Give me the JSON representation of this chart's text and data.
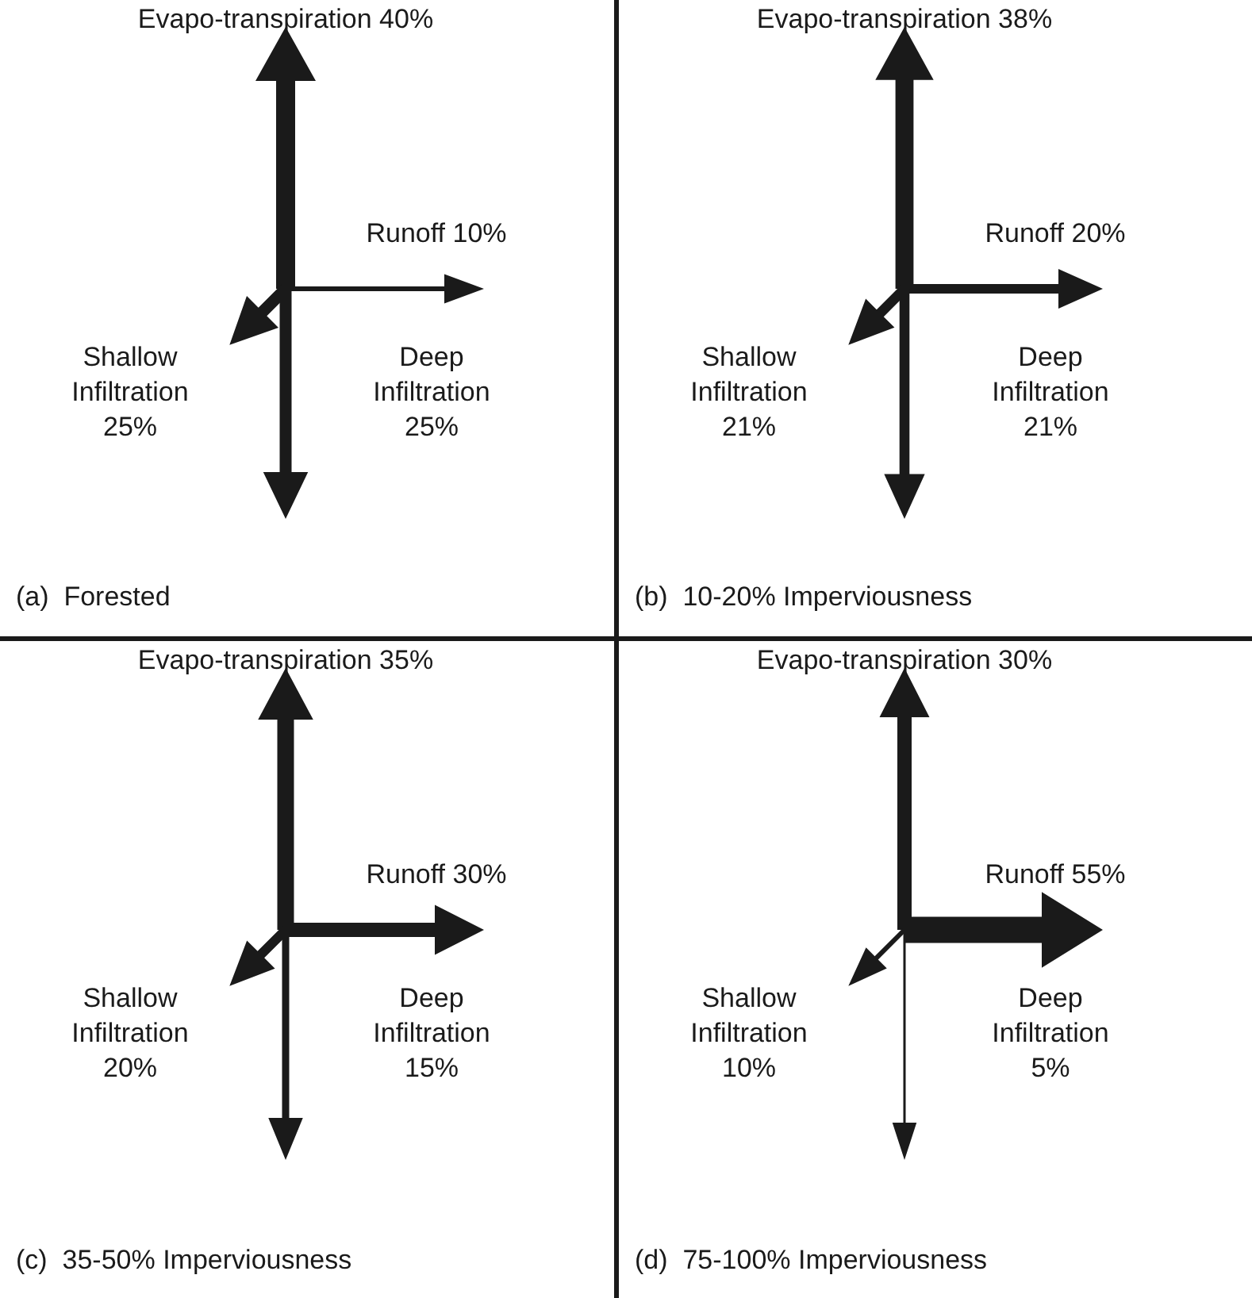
{
  "chart_data": [
    {
      "type": "other",
      "title": "(a)  Forested",
      "categories": [
        "Evapo-transpiration",
        "Runoff",
        "Shallow Infiltration",
        "Deep Infiltration"
      ],
      "values": [
        40,
        10,
        25,
        25
      ],
      "value_labels": [
        "40%",
        "10%",
        "25%",
        "25%"
      ]
    },
    {
      "type": "other",
      "title": "(b)  10-20% Imperviousness",
      "categories": [
        "Evapo-transpiration",
        "Runoff",
        "Shallow Infiltration",
        "Deep Infiltration"
      ],
      "values": [
        38,
        20,
        21,
        21
      ],
      "value_labels": [
        "38%",
        "20%",
        "21%",
        "21%"
      ]
    },
    {
      "type": "other",
      "title": "(c)  35-50% Imperviousness",
      "categories": [
        "Evapo-transpiration",
        "Runoff",
        "Shallow Infiltration",
        "Deep Infiltration"
      ],
      "values": [
        35,
        30,
        20,
        15
      ],
      "value_labels": [
        "35%",
        "30%",
        "20%",
        "15%"
      ]
    },
    {
      "type": "other",
      "title": "(d)  75-100% Imperviousness",
      "categories": [
        "Evapo-transpiration",
        "Runoff",
        "Shallow Infiltration",
        "Deep Infiltration"
      ],
      "values": [
        30,
        55,
        10,
        5
      ],
      "value_labels": [
        "30%",
        "55%",
        "10%",
        "5%"
      ]
    }
  ]
}
